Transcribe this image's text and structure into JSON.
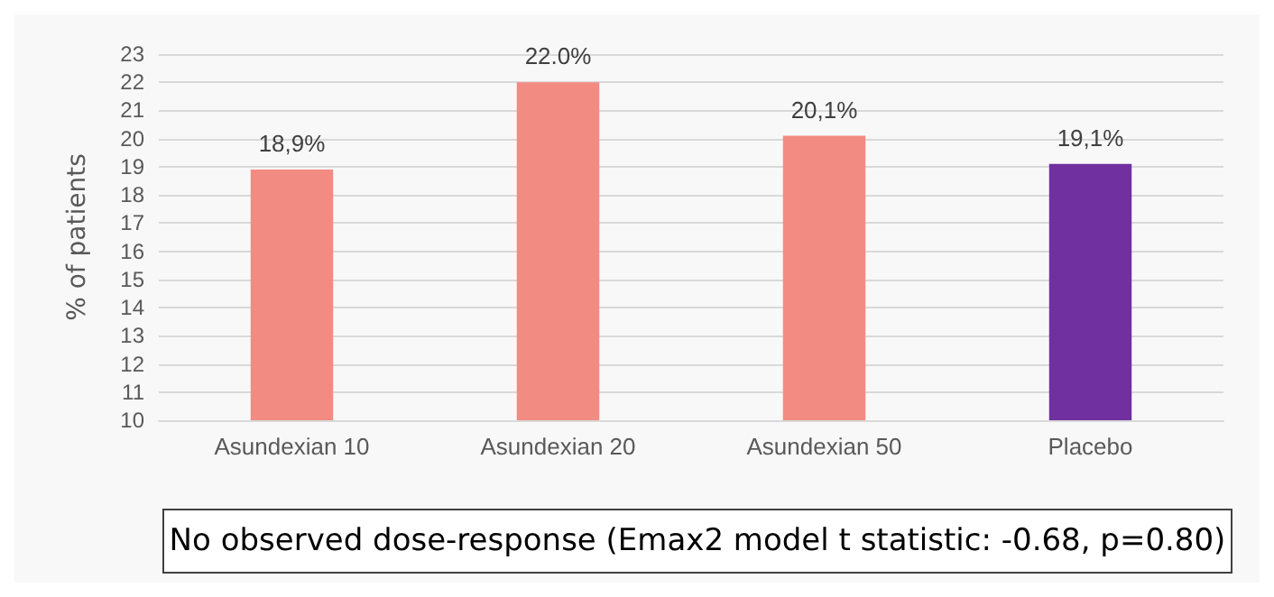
{
  "chart_data": {
    "type": "bar",
    "ylabel": "% of patients",
    "categories": [
      "Asundexian 10",
      "Asundexian 20",
      "Asundexian 50",
      "Placebo"
    ],
    "values": [
      18.9,
      22.0,
      20.1,
      19.1
    ],
    "colors": [
      "#f28b82",
      "#f28b82",
      "#f28b82",
      "#7030a0"
    ],
    "value_labels": [
      "18,9%",
      "22.0%",
      "20,1%",
      "19,1%"
    ],
    "ylim": [
      10,
      23
    ],
    "yticks": [
      10,
      11,
      12,
      13,
      14,
      15,
      16,
      17,
      18,
      19,
      20,
      21,
      22,
      23
    ],
    "grid": "y",
    "annotations": [
      "No observed dose-response (Emax2 model t statistic: -0.68, p=0.80)"
    ]
  }
}
